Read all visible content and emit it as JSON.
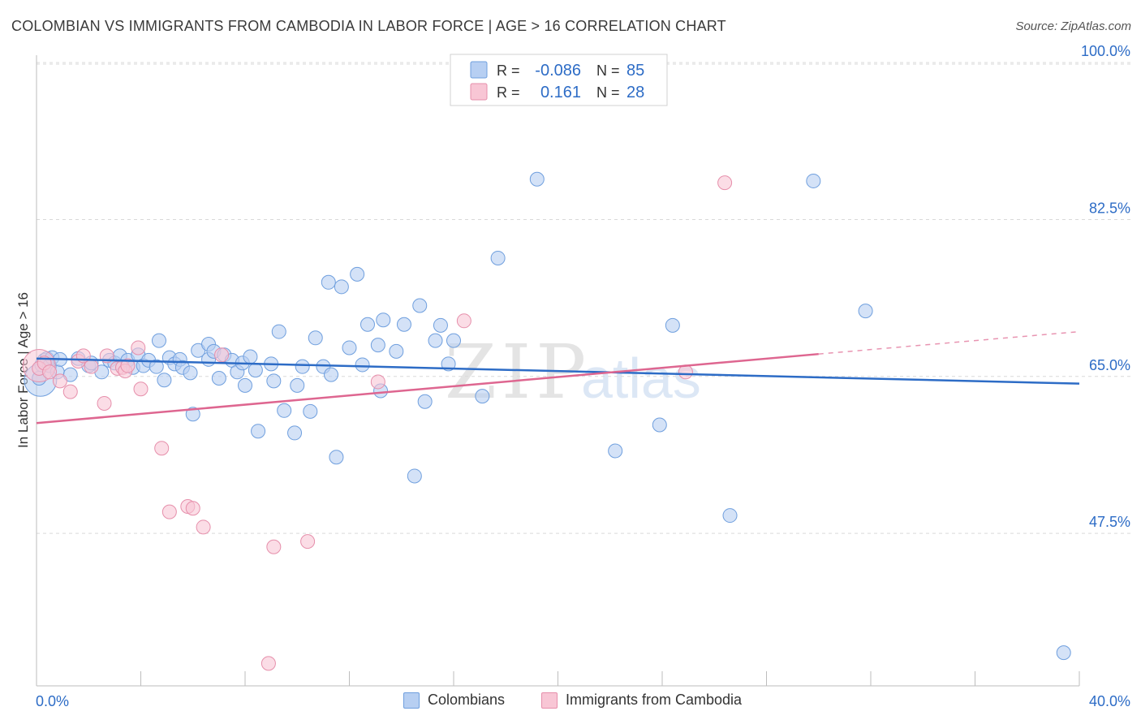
{
  "header": {
    "title": "COLOMBIAN VS IMMIGRANTS FROM CAMBODIA IN LABOR FORCE | AGE > 16 CORRELATION CHART",
    "source": "Source: ZipAtlas.com"
  },
  "watermark": {
    "zip": "ZIP",
    "atlas": "atlas"
  },
  "stats_legend": {
    "rows": [
      {
        "r_label": "R =",
        "r_value": "-0.086",
        "n_label": "N =",
        "n_value": "85"
      },
      {
        "r_label": "R =",
        "r_value": "0.161",
        "n_label": "N =",
        "n_value": "28"
      }
    ]
  },
  "colors": {
    "blue_fill": "#b7cff2",
    "blue_stroke": "#6f9fde",
    "blue_line": "#2d6cc6",
    "pink_fill": "#f8c6d5",
    "pink_stroke": "#e68fab",
    "pink_line": "#de6690",
    "value_text": "#2d6cc6",
    "grid": "#d9d9d9"
  },
  "chart_data": {
    "type": "scatter",
    "title": "COLOMBIAN VS IMMIGRANTS FROM CAMBODIA IN LABOR FORCE | AGE > 16 CORRELATION CHART",
    "xlabel": "",
    "ylabel": "In Labor Force | Age > 16",
    "xlim": [
      0,
      40
    ],
    "ylim": [
      30.5,
      102
    ],
    "x_tick_labels": [
      "0.0%",
      "40.0%"
    ],
    "y_ticks": [
      47.5,
      65.0,
      82.5,
      100.0
    ],
    "y_tick_labels": [
      "47.5%",
      "65.0%",
      "82.5%",
      "100.0%"
    ],
    "grid": true,
    "legend_position": "bottom-center",
    "series": [
      {
        "name": "Colombians",
        "color": "blue",
        "points": [
          [
            0.1,
            64.8
          ],
          [
            0.2,
            66.3
          ],
          [
            0.3,
            66.8
          ],
          [
            0.4,
            67.0
          ],
          [
            0.5,
            66.2
          ],
          [
            0.6,
            67.1
          ],
          [
            0.8,
            65.5
          ],
          [
            0.9,
            66.9
          ],
          [
            1.3,
            65.2
          ],
          [
            1.6,
            67.0
          ],
          [
            2.0,
            66.2
          ],
          [
            2.1,
            66.5
          ],
          [
            2.5,
            65.5
          ],
          [
            2.8,
            66.8
          ],
          [
            3.0,
            66.5
          ],
          [
            3.2,
            67.3
          ],
          [
            3.5,
            66.8
          ],
          [
            3.7,
            66.0
          ],
          [
            3.9,
            67.4
          ],
          [
            4.1,
            66.2
          ],
          [
            4.3,
            66.8
          ],
          [
            4.6,
            66.1
          ],
          [
            4.7,
            69.0
          ],
          [
            4.9,
            64.6
          ],
          [
            5.1,
            67.1
          ],
          [
            5.3,
            66.4
          ],
          [
            5.5,
            66.9
          ],
          [
            5.6,
            66.0
          ],
          [
            5.9,
            65.4
          ],
          [
            6.0,
            60.8
          ],
          [
            6.2,
            67.9
          ],
          [
            6.6,
            66.9
          ],
          [
            6.6,
            68.6
          ],
          [
            6.8,
            67.8
          ],
          [
            7.0,
            64.8
          ],
          [
            7.2,
            67.4
          ],
          [
            7.5,
            66.8
          ],
          [
            7.7,
            65.5
          ],
          [
            7.9,
            66.5
          ],
          [
            8.0,
            64.0
          ],
          [
            8.2,
            67.2
          ],
          [
            8.4,
            65.7
          ],
          [
            8.5,
            58.9
          ],
          [
            9.0,
            66.4
          ],
          [
            9.1,
            64.5
          ],
          [
            9.3,
            70.0
          ],
          [
            9.5,
            61.2
          ],
          [
            9.9,
            58.7
          ],
          [
            10.0,
            64.0
          ],
          [
            10.2,
            66.1
          ],
          [
            10.5,
            61.1
          ],
          [
            10.7,
            69.3
          ],
          [
            11.0,
            66.1
          ],
          [
            11.2,
            75.5
          ],
          [
            11.3,
            65.2
          ],
          [
            11.5,
            56.0
          ],
          [
            11.7,
            75.0
          ],
          [
            12.0,
            68.2
          ],
          [
            12.3,
            76.4
          ],
          [
            12.5,
            66.3
          ],
          [
            12.7,
            70.8
          ],
          [
            13.1,
            68.5
          ],
          [
            13.2,
            63.4
          ],
          [
            13.3,
            71.3
          ],
          [
            13.8,
            67.8
          ],
          [
            14.1,
            70.8
          ],
          [
            14.5,
            53.9
          ],
          [
            14.7,
            72.9
          ],
          [
            14.9,
            62.2
          ],
          [
            15.3,
            69.0
          ],
          [
            15.5,
            70.7
          ],
          [
            15.8,
            66.4
          ],
          [
            16.0,
            69.0
          ],
          [
            17.1,
            62.8
          ],
          [
            17.7,
            78.2
          ],
          [
            19.2,
            87.0
          ],
          [
            22.2,
            56.7
          ],
          [
            23.9,
            59.6
          ],
          [
            24.4,
            70.7
          ],
          [
            26.6,
            49.5
          ],
          [
            29.8,
            86.8
          ],
          [
            31.8,
            72.3
          ],
          [
            39.4,
            34.2
          ]
        ],
        "big_point": [
          0.15,
          64.6
        ],
        "trend": {
          "x": [
            0,
            40
          ],
          "y": [
            67.0,
            64.2
          ]
        }
      },
      {
        "name": "Immigrants from Cambodia",
        "color": "pink",
        "points": [
          [
            0.1,
            65.9
          ],
          [
            0.3,
            66.5
          ],
          [
            0.5,
            65.5
          ],
          [
            0.9,
            64.5
          ],
          [
            1.3,
            63.3
          ],
          [
            1.6,
            66.7
          ],
          [
            1.8,
            67.3
          ],
          [
            2.1,
            66.1
          ],
          [
            2.6,
            62.0
          ],
          [
            2.7,
            67.3
          ],
          [
            3.1,
            65.9
          ],
          [
            3.3,
            66.0
          ],
          [
            3.4,
            65.6
          ],
          [
            3.5,
            66.2
          ],
          [
            3.9,
            68.2
          ],
          [
            4.0,
            63.6
          ],
          [
            4.8,
            57.0
          ],
          [
            5.1,
            49.9
          ],
          [
            5.8,
            50.5
          ],
          [
            6.0,
            50.3
          ],
          [
            6.4,
            48.2
          ],
          [
            7.1,
            67.4
          ],
          [
            8.9,
            33.0
          ],
          [
            9.1,
            46.0
          ],
          [
            10.4,
            46.6
          ],
          [
            13.1,
            64.4
          ],
          [
            16.4,
            71.2
          ],
          [
            24.9,
            65.5
          ],
          [
            26.4,
            86.6
          ]
        ],
        "big_point": [
          0.1,
          66.2
        ],
        "trend": {
          "x": [
            0,
            30
          ],
          "y": [
            59.8,
            67.5
          ]
        },
        "trend_dashed": {
          "x": [
            30,
            40
          ],
          "y": [
            67.5,
            70.0
          ]
        }
      }
    ]
  },
  "bottom_legend": {
    "items": [
      {
        "label": "Colombians",
        "color": "blue"
      },
      {
        "label": "Immigrants from Cambodia",
        "color": "pink"
      }
    ]
  }
}
